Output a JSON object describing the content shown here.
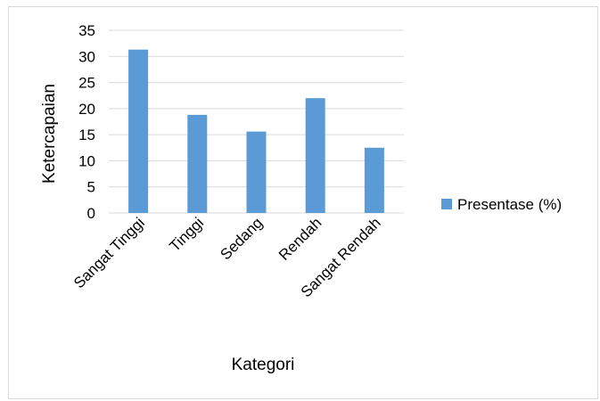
{
  "chart_data": {
    "type": "bar",
    "categories": [
      "Sangat Tinggi",
      "Tinggi",
      "Sedang",
      "Rendah",
      "Sangat Rendah"
    ],
    "series": [
      {
        "name": "Presentase (%)",
        "values": [
          31.3,
          18.8,
          15.6,
          22.0,
          12.5
        ]
      }
    ],
    "xlabel": "Kategori",
    "ylabel": "Ketercapaian",
    "ylim": [
      0,
      35
    ],
    "yticks": [
      0,
      5,
      10,
      15,
      20,
      25,
      30,
      35
    ],
    "grid": true,
    "legend_position": "right",
    "colors": {
      "bar": "#5b9bd5",
      "grid": "#d9d9d9"
    }
  }
}
